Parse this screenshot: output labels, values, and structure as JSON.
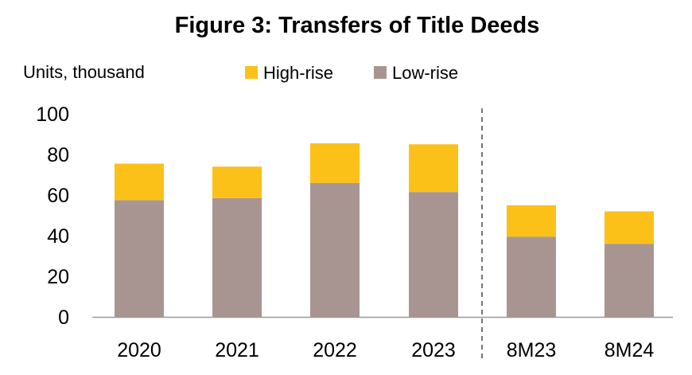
{
  "chart_data": {
    "type": "bar",
    "stacked": true,
    "title": "Figure 3: Transfers of Title Deeds",
    "ylabel": "Units, thousand",
    "xlabel": "",
    "categories": [
      "2020",
      "2021",
      "2022",
      "2023",
      "8M23",
      "8M24"
    ],
    "series": [
      {
        "name": "Low-rise",
        "color": "#A89592",
        "values": [
          57.5,
          58.5,
          66,
          61.5,
          39.5,
          36
        ]
      },
      {
        "name": "High-rise",
        "color": "#FCC118",
        "values": [
          18,
          15.5,
          19.5,
          23.5,
          15.5,
          16
        ]
      }
    ],
    "legend_order": [
      "High-rise",
      "Low-rise"
    ],
    "legend_position": "top",
    "ylim": [
      0,
      100
    ],
    "yticks": [
      0,
      20,
      40,
      60,
      80,
      100
    ],
    "grid": false,
    "separator_after_category": "2023"
  }
}
